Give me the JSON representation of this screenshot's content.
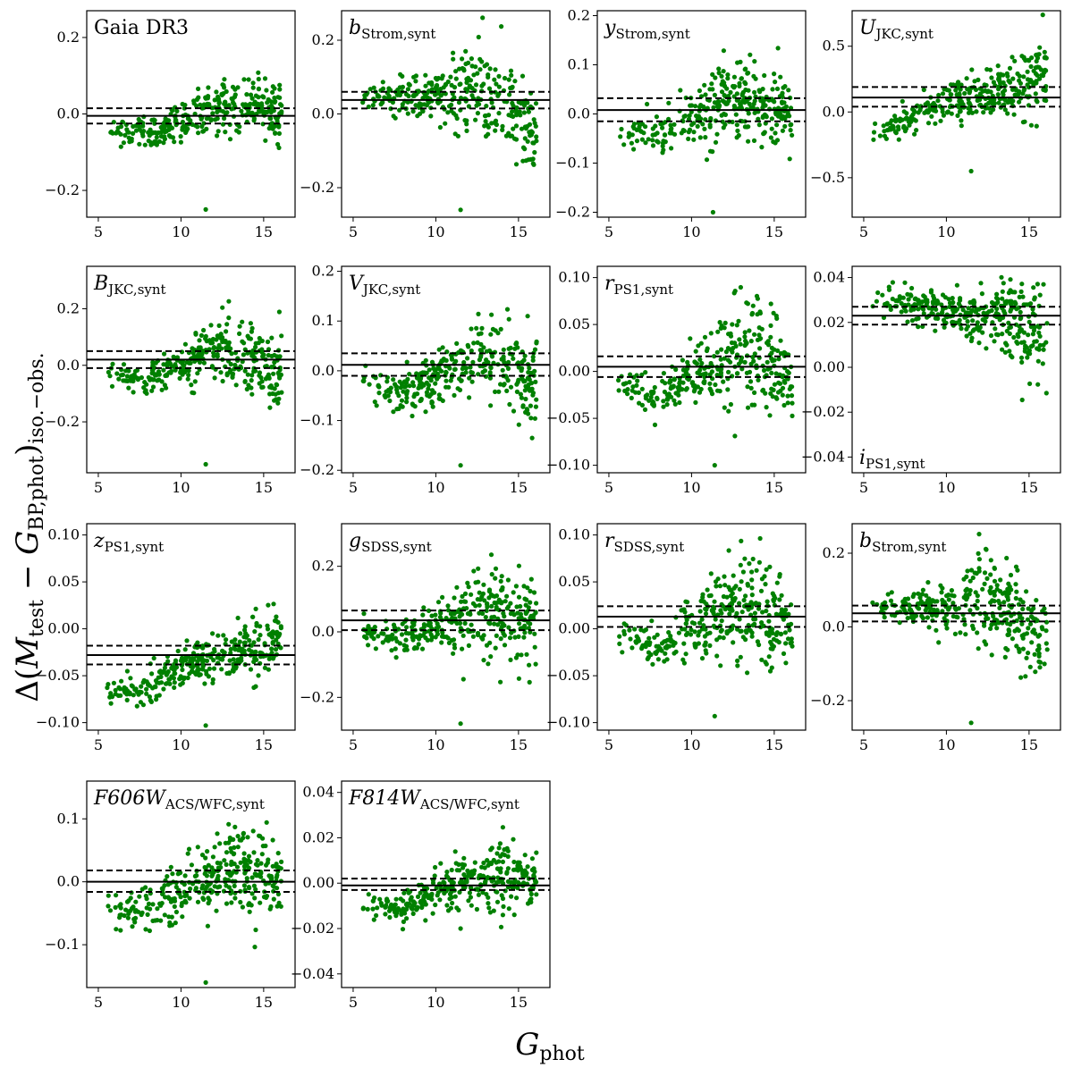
{
  "figure": {
    "xlabel": {
      "main": "G",
      "sub": "phot"
    },
    "ylabel": {
      "prefix": "Δ(",
      "m": "M",
      "m_sub": "test",
      "minus": " − ",
      "g": "G",
      "g_sub": "BP,phot",
      "suffix": ")",
      "outer_sub": "iso.−obs."
    },
    "colors": {
      "point": "#008000",
      "line": "#000000",
      "frame": "#000000",
      "background": "#ffffff"
    }
  },
  "chart_data": [
    {
      "type": "scatter",
      "title": {
        "main": "Gaia DR3",
        "sub": ""
      },
      "title_pos": "top-left",
      "xlim": [
        4.3,
        16.9
      ],
      "ylim": [
        -0.27,
        0.27
      ],
      "xticks": [
        5,
        10,
        15
      ],
      "xtick_labels": [
        "5",
        "10",
        "15"
      ],
      "yticks": [
        -0.2,
        0.0,
        0.2
      ],
      "ytick_labels": [
        "−0.2",
        "0.0",
        "0.2"
      ],
      "mean": -0.005,
      "std_upper": 0.015,
      "std_lower": -0.025,
      "trend": [
        [
          5.5,
          -0.05
        ],
        [
          8,
          -0.05
        ],
        [
          10,
          -0.02
        ],
        [
          12.5,
          0.02
        ],
        [
          14,
          0.02
        ],
        [
          16,
          0.0
        ]
      ],
      "spread": [
        [
          5.5,
          0.02
        ],
        [
          9,
          0.03
        ],
        [
          12.5,
          0.05
        ],
        [
          16,
          0.05
        ]
      ],
      "outlier": [
        11.5,
        -0.25
      ]
    },
    {
      "type": "scatter",
      "title": {
        "main": "b",
        "sub": "Strom,synt"
      },
      "title_pos": "top-left",
      "xlim": [
        4.3,
        16.9
      ],
      "ylim": [
        -0.28,
        0.28
      ],
      "xticks": [
        5,
        10,
        15
      ],
      "xtick_labels": [
        "5",
        "10",
        "15"
      ],
      "yticks": [
        -0.2,
        0.0,
        0.2
      ],
      "ytick_labels": [
        "−0.2",
        "0.0",
        "0.2"
      ],
      "mean": 0.038,
      "std_upper": 0.06,
      "std_lower": 0.015,
      "trend": [
        [
          6,
          0.05
        ],
        [
          9,
          0.05
        ],
        [
          12.5,
          0.07
        ],
        [
          14,
          0.03
        ],
        [
          16,
          -0.04
        ]
      ],
      "spread": [
        [
          6,
          0.02
        ],
        [
          10,
          0.04
        ],
        [
          12.5,
          0.09
        ],
        [
          16,
          0.08
        ]
      ],
      "outlier": [
        11.5,
        -0.26
      ]
    },
    {
      "type": "scatter",
      "title": {
        "main": "y",
        "sub": "Strom,synt"
      },
      "title_pos": "top-left",
      "xlim": [
        4.3,
        16.9
      ],
      "ylim": [
        -0.21,
        0.21
      ],
      "xticks": [
        5,
        10,
        15
      ],
      "xtick_labels": [
        "5",
        "10",
        "15"
      ],
      "yticks": [
        -0.2,
        -0.1,
        0.0,
        0.1,
        0.2
      ],
      "ytick_labels": [
        "−0.2",
        "−0.1",
        "0.0",
        "0.1",
        "0.2"
      ],
      "mean": 0.008,
      "std_upper": 0.032,
      "std_lower": -0.015,
      "trend": [
        [
          5.5,
          -0.03
        ],
        [
          8,
          -0.05
        ],
        [
          10,
          -0.01
        ],
        [
          12.5,
          0.03
        ],
        [
          14,
          0.02
        ],
        [
          16,
          0.0
        ]
      ],
      "spread": [
        [
          5.5,
          0.02
        ],
        [
          9,
          0.03
        ],
        [
          12.5,
          0.05
        ],
        [
          16,
          0.05
        ]
      ],
      "outlier": [
        11.3,
        -0.2
      ]
    },
    {
      "type": "scatter",
      "title": {
        "main": "U",
        "sub": "JKC,synt"
      },
      "title_pos": "top-left",
      "xlim": [
        4.3,
        16.9
      ],
      "ylim": [
        -0.8,
        0.77
      ],
      "xticks": [
        5,
        10,
        15
      ],
      "xtick_labels": [
        "5",
        "10",
        "15"
      ],
      "yticks": [
        -0.5,
        0.0,
        0.5
      ],
      "ytick_labels": [
        "−0.5",
        "0.0",
        "0.5"
      ],
      "mean": 0.11,
      "std_upper": 0.19,
      "std_lower": 0.04,
      "trend": [
        [
          5.5,
          -0.2
        ],
        [
          8,
          -0.05
        ],
        [
          10,
          0.08
        ],
        [
          12.5,
          0.14
        ],
        [
          14,
          0.15
        ],
        [
          16,
          0.3
        ]
      ],
      "spread": [
        [
          5.5,
          0.06
        ],
        [
          9,
          0.07
        ],
        [
          12.5,
          0.12
        ],
        [
          15,
          0.16
        ],
        [
          16,
          0.25
        ]
      ],
      "outlier": [
        11.5,
        -0.45
      ]
    },
    {
      "type": "scatter",
      "title": {
        "main": "B",
        "sub": "JKC,synt"
      },
      "title_pos": "top-left",
      "xlim": [
        4.3,
        16.9
      ],
      "ylim": [
        -0.38,
        0.35
      ],
      "xticks": [
        5,
        10,
        15
      ],
      "xtick_labels": [
        "5",
        "10",
        "15"
      ],
      "yticks": [
        -0.2,
        0.0,
        0.2
      ],
      "ytick_labels": [
        "−0.2",
        "0.0",
        "0.2"
      ],
      "mean": 0.02,
      "std_upper": 0.05,
      "std_lower": -0.01,
      "trend": [
        [
          5.5,
          -0.02
        ],
        [
          8,
          -0.05
        ],
        [
          10,
          0.0
        ],
        [
          12.5,
          0.05
        ],
        [
          14,
          0.02
        ],
        [
          16,
          -0.03
        ]
      ],
      "spread": [
        [
          5.5,
          0.03
        ],
        [
          9,
          0.04
        ],
        [
          12.5,
          0.08
        ],
        [
          16,
          0.1
        ]
      ],
      "outlier": [
        11.5,
        -0.35
      ]
    },
    {
      "type": "scatter",
      "title": {
        "main": "V",
        "sub": "JKC,synt"
      },
      "title_pos": "top-left",
      "xlim": [
        4.3,
        16.9
      ],
      "ylim": [
        -0.205,
        0.21
      ],
      "xticks": [
        5,
        10,
        15
      ],
      "xtick_labels": [
        "5",
        "10",
        "15"
      ],
      "yticks": [
        -0.2,
        -0.1,
        0.0,
        0.1,
        0.2
      ],
      "ytick_labels": [
        "−0.2",
        "−0.1",
        "0.0",
        "0.1",
        "0.2"
      ],
      "mean": 0.012,
      "std_upper": 0.035,
      "std_lower": -0.01,
      "trend": [
        [
          5.5,
          -0.02
        ],
        [
          8,
          -0.05
        ],
        [
          10,
          -0.01
        ],
        [
          12.5,
          0.03
        ],
        [
          14,
          0.02
        ],
        [
          16,
          -0.03
        ]
      ],
      "spread": [
        [
          5.5,
          0.02
        ],
        [
          9,
          0.03
        ],
        [
          12.5,
          0.05
        ],
        [
          16,
          0.06
        ]
      ],
      "outlier": [
        11.5,
        -0.19
      ]
    },
    {
      "type": "scatter",
      "title": {
        "main": "r",
        "sub": "PS1,synt"
      },
      "title_pos": "top-left",
      "xlim": [
        4.3,
        16.9
      ],
      "ylim": [
        -0.108,
        0.112
      ],
      "xticks": [
        5,
        10,
        15
      ],
      "xtick_labels": [
        "5",
        "10",
        "15"
      ],
      "yticks": [
        -0.1,
        -0.05,
        0.0,
        0.05,
        0.1
      ],
      "ytick_labels": [
        "−0.10",
        "−0.05",
        "0.00",
        "0.05",
        "0.10"
      ],
      "mean": 0.005,
      "std_upper": 0.016,
      "std_lower": -0.006,
      "trend": [
        [
          5.5,
          -0.01
        ],
        [
          8,
          -0.03
        ],
        [
          10,
          -0.005
        ],
        [
          12.5,
          0.015
        ],
        [
          14,
          0.02
        ],
        [
          16,
          -0.01
        ]
      ],
      "spread": [
        [
          5.5,
          0.01
        ],
        [
          9,
          0.015
        ],
        [
          12.5,
          0.035
        ],
        [
          14,
          0.045
        ],
        [
          16,
          0.03
        ]
      ],
      "outlier": [
        11.4,
        -0.1
      ]
    },
    {
      "type": "scatter",
      "title": {
        "main": "i",
        "sub": "PS1,synt"
      },
      "title_pos": "bottom-left",
      "xlim": [
        4.3,
        16.9
      ],
      "ylim": [
        -0.047,
        0.045
      ],
      "xticks": [
        5,
        10,
        15
      ],
      "xtick_labels": [
        "5",
        "10",
        "15"
      ],
      "yticks": [
        -0.04,
        -0.02,
        0.0,
        0.02,
        0.04
      ],
      "ytick_labels": [
        "−0.04",
        "−0.02",
        "0.00",
        "0.02",
        "0.04"
      ],
      "mean": 0.023,
      "std_upper": 0.027,
      "std_lower": 0.019,
      "trend": [
        [
          5.5,
          0.03
        ],
        [
          8,
          0.028
        ],
        [
          10,
          0.025
        ],
        [
          12.5,
          0.024
        ],
        [
          14,
          0.022
        ],
        [
          16,
          0.01
        ]
      ],
      "spread": [
        [
          5.5,
          0.004
        ],
        [
          10,
          0.006
        ],
        [
          13,
          0.008
        ],
        [
          16,
          0.018
        ]
      ],
      "outlier": null
    },
    {
      "type": "scatter",
      "title": {
        "main": "z",
        "sub": "PS1,synt"
      },
      "title_pos": "top-left",
      "xlim": [
        4.3,
        16.9
      ],
      "ylim": [
        -0.108,
        0.112
      ],
      "xticks": [
        5,
        10,
        15
      ],
      "xtick_labels": [
        "5",
        "10",
        "15"
      ],
      "yticks": [
        -0.1,
        -0.05,
        0.0,
        0.05,
        0.1
      ],
      "ytick_labels": [
        "−0.10",
        "−0.05",
        "0.00",
        "0.05",
        "0.10"
      ],
      "mean": -0.028,
      "std_upper": -0.018,
      "std_lower": -0.038,
      "trend": [
        [
          5.5,
          -0.07
        ],
        [
          8,
          -0.06
        ],
        [
          10,
          -0.04
        ],
        [
          12.5,
          -0.03
        ],
        [
          14,
          -0.02
        ],
        [
          16,
          -0.01
        ]
      ],
      "spread": [
        [
          5.5,
          0.01
        ],
        [
          9,
          0.015
        ],
        [
          12.5,
          0.015
        ],
        [
          15,
          0.025
        ],
        [
          16,
          0.02
        ]
      ],
      "outlier": [
        11.5,
        -0.103
      ]
    },
    {
      "type": "scatter",
      "title": {
        "main": "g",
        "sub": "SDSS,synt"
      },
      "title_pos": "top-left",
      "xlim": [
        4.3,
        16.9
      ],
      "ylim": [
        -0.3,
        0.33
      ],
      "xticks": [
        5,
        10,
        15
      ],
      "xtick_labels": [
        "5",
        "10",
        "15"
      ],
      "yticks": [
        -0.2,
        0.0,
        0.2
      ],
      "ytick_labels": [
        "−0.2",
        "0.0",
        "0.2"
      ],
      "mean": 0.035,
      "std_upper": 0.065,
      "std_lower": 0.005,
      "trend": [
        [
          5.5,
          0.0
        ],
        [
          8,
          -0.03
        ],
        [
          10,
          0.02
        ],
        [
          12.5,
          0.06
        ],
        [
          14,
          0.05
        ],
        [
          16,
          0.02
        ]
      ],
      "spread": [
        [
          5.5,
          0.03
        ],
        [
          9,
          0.04
        ],
        [
          12.5,
          0.08
        ],
        [
          16,
          0.08
        ]
      ],
      "outlier": [
        11.5,
        -0.28
      ]
    },
    {
      "type": "scatter",
      "title": {
        "main": "r",
        "sub": "SDSS,synt"
      },
      "title_pos": "top-left",
      "xlim": [
        4.3,
        16.9
      ],
      "ylim": [
        -0.108,
        0.112
      ],
      "xticks": [
        5,
        10,
        15
      ],
      "xtick_labels": [
        "5",
        "10",
        "15"
      ],
      "yticks": [
        -0.1,
        -0.05,
        0.0,
        0.05,
        0.1
      ],
      "ytick_labels": [
        "−0.10",
        "−0.05",
        "0.00",
        "0.05",
        "0.10"
      ],
      "mean": 0.013,
      "std_upper": 0.024,
      "std_lower": 0.002,
      "trend": [
        [
          5.5,
          0.0
        ],
        [
          8,
          -0.02
        ],
        [
          10,
          0.005
        ],
        [
          12.5,
          0.02
        ],
        [
          14,
          0.025
        ],
        [
          16,
          0.0
        ]
      ],
      "spread": [
        [
          5.5,
          0.01
        ],
        [
          9,
          0.015
        ],
        [
          12.5,
          0.035
        ],
        [
          14,
          0.045
        ],
        [
          16,
          0.03
        ]
      ],
      "outlier": [
        11.4,
        -0.093
      ]
    },
    {
      "type": "scatter",
      "title": {
        "main": "b",
        "sub": "Strom,synt"
      },
      "title_pos": "top-left",
      "xlim": [
        4.3,
        16.9
      ],
      "ylim": [
        -0.28,
        0.28
      ],
      "xticks": [
        5,
        10,
        15
      ],
      "xtick_labels": [
        "5",
        "10",
        "15"
      ],
      "yticks": [
        -0.2,
        0.0,
        0.2
      ],
      "ytick_labels": [
        "−0.2",
        "0.0",
        "0.2"
      ],
      "mean": 0.037,
      "std_upper": 0.058,
      "std_lower": 0.015,
      "trend": [
        [
          6,
          0.05
        ],
        [
          9,
          0.05
        ],
        [
          12.5,
          0.07
        ],
        [
          14,
          0.03
        ],
        [
          16,
          -0.04
        ]
      ],
      "spread": [
        [
          6,
          0.02
        ],
        [
          10,
          0.04
        ],
        [
          12.5,
          0.09
        ],
        [
          16,
          0.08
        ]
      ],
      "outlier": [
        11.5,
        -0.26
      ]
    },
    {
      "type": "scatter",
      "title": {
        "main": "F606W",
        "sub": "ACS/WFC,synt"
      },
      "title_pos": "top-left",
      "xlim": [
        4.3,
        16.9
      ],
      "ylim": [
        -0.168,
        0.16
      ],
      "xticks": [
        5,
        10,
        15
      ],
      "xtick_labels": [
        "5",
        "10",
        "15"
      ],
      "yticks": [
        -0.1,
        0.0,
        0.1
      ],
      "ytick_labels": [
        "−0.1",
        "0.0",
        "0.1"
      ],
      "mean": 0.0,
      "std_upper": 0.018,
      "std_lower": -0.016,
      "trend": [
        [
          5.5,
          -0.04
        ],
        [
          8,
          -0.05
        ],
        [
          10,
          -0.015
        ],
        [
          12.5,
          0.02
        ],
        [
          14,
          0.025
        ],
        [
          16,
          0.0
        ]
      ],
      "spread": [
        [
          5.5,
          0.02
        ],
        [
          9,
          0.03
        ],
        [
          12.5,
          0.04
        ],
        [
          14,
          0.05
        ],
        [
          16,
          0.04
        ]
      ],
      "outlier": [
        11.5,
        -0.16
      ]
    },
    {
      "type": "scatter",
      "title": {
        "main": "F814W",
        "sub": "ACS/WFC,synt"
      },
      "title_pos": "top-left",
      "xlim": [
        4.3,
        16.9
      ],
      "ylim": [
        -0.046,
        0.045
      ],
      "xticks": [
        5,
        10,
        15
      ],
      "xtick_labels": [
        "5",
        "10",
        "15"
      ],
      "yticks": [
        -0.04,
        -0.02,
        0.0,
        0.02,
        0.04
      ],
      "ytick_labels": [
        "−0.04",
        "−0.02",
        "0.00",
        "0.02",
        "0.04"
      ],
      "mean": -0.001,
      "std_upper": 0.002,
      "std_lower": -0.003,
      "trend": [
        [
          5.5,
          -0.01
        ],
        [
          8,
          -0.012
        ],
        [
          10,
          -0.003
        ],
        [
          12.5,
          0.002
        ],
        [
          14,
          0.005
        ],
        [
          16,
          0.0
        ]
      ],
      "spread": [
        [
          5.5,
          0.004
        ],
        [
          9,
          0.005
        ],
        [
          12.5,
          0.008
        ],
        [
          14,
          0.012
        ],
        [
          16,
          0.008
        ]
      ],
      "outlier": [
        11.5,
        -0.02
      ]
    }
  ]
}
